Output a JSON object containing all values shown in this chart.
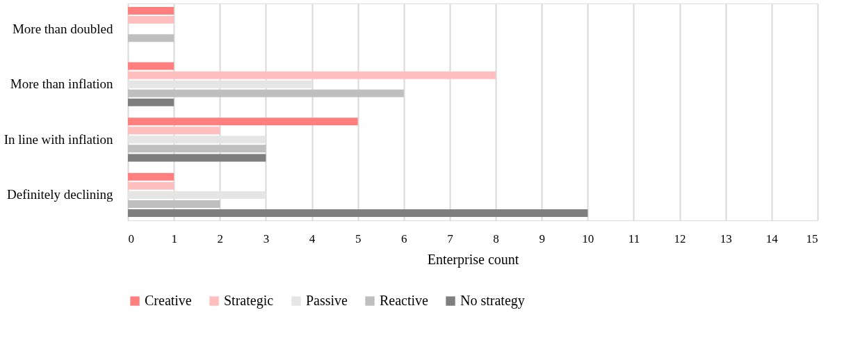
{
  "chart_data": {
    "type": "bar",
    "orientation": "horizontal",
    "categories": [
      "More than doubled",
      "More than inflation",
      "In line with inflation",
      "Definitely declining"
    ],
    "series": [
      {
        "name": "Creative",
        "color": "#ff7f7f",
        "values": [
          1,
          1,
          5,
          1
        ]
      },
      {
        "name": "Strategic",
        "color": "#ffbfbf",
        "values": [
          1,
          8,
          2,
          1
        ]
      },
      {
        "name": "Passive",
        "color": "#e5e5e5",
        "values": [
          0,
          4,
          3,
          3
        ]
      },
      {
        "name": "Reactive",
        "color": "#bfbfbf",
        "values": [
          1,
          6,
          3,
          2
        ]
      },
      {
        "name": "No strategy",
        "color": "#7f7f7f",
        "values": [
          0,
          1,
          3,
          10
        ]
      }
    ],
    "xlabel": "Enterprise count",
    "xlim": [
      0,
      15
    ],
    "xticks": [
      0,
      1,
      2,
      3,
      4,
      5,
      6,
      7,
      8,
      9,
      10,
      11,
      12,
      13,
      14,
      15
    ],
    "grid": "x",
    "legend": "bottom"
  }
}
